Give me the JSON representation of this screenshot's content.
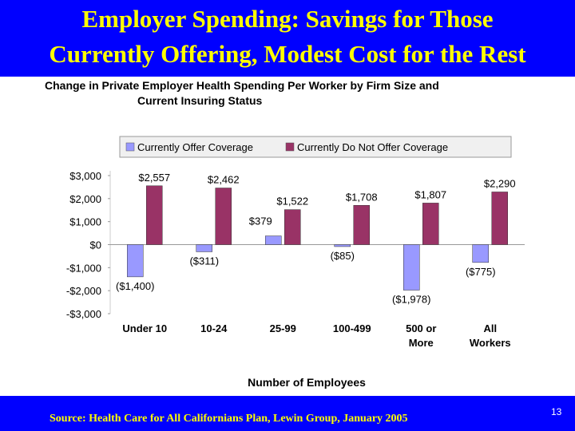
{
  "slide": {
    "title_line1": "Employer Spending: Savings for Those",
    "title_line2": "Currently Offering, Modest Cost for the Rest",
    "source": "Source: Health Care for All Californians Plan, Lewin Group, January 2005",
    "page_number": "13",
    "colors": {
      "banner": "#0000ff",
      "title_text": "#ffff00",
      "offer_bar": "#9999ff",
      "not_offer_bar": "#993366"
    }
  },
  "chart_data": {
    "type": "bar",
    "title_line1": "Change in Private Employer Health Spending Per Worker by Firm Size and",
    "title_line2": "Current Insuring Status",
    "xlabel": "Number of Employees",
    "ylabel": "",
    "categories": [
      [
        "Under 10"
      ],
      [
        "10-24"
      ],
      [
        "25-99"
      ],
      [
        "100-499"
      ],
      [
        "500 or",
        "More"
      ],
      [
        "All",
        "Workers"
      ]
    ],
    "series": [
      {
        "name": "Currently Offer Coverage",
        "color": "#9999ff",
        "values": [
          -1400,
          -311,
          379,
          -85,
          -1978,
          -775
        ],
        "labels": [
          "($1,400)",
          "($311)",
          "$379",
          "($85)",
          "($1,978)",
          "($775)"
        ]
      },
      {
        "name": "Currently Do Not Offer Coverage",
        "color": "#993366",
        "values": [
          2557,
          2462,
          1522,
          1708,
          1807,
          2290
        ],
        "labels": [
          "$2,557",
          "$2,462",
          "$1,522",
          "$1,708",
          "$1,807",
          "$2,290"
        ]
      }
    ],
    "yticks": [
      3000,
      2000,
      1000,
      0,
      -1000,
      -2000,
      -3000
    ],
    "ytick_labels": [
      "$3,000",
      "$2,000",
      "$1,000",
      "$0",
      "-$1,000",
      "-$2,000",
      "-$3,000"
    ],
    "ylim": [
      -3000,
      3000
    ],
    "grid": false,
    "legend_position": "top"
  }
}
